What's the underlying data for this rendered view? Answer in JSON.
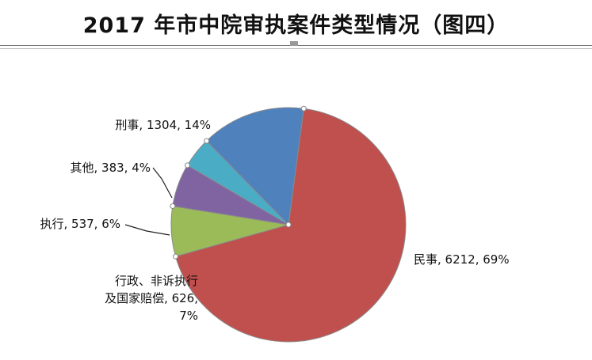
{
  "title": "2017 年市中院审执案件类型情况（图四）",
  "chart_data": {
    "type": "pie",
    "title": "2017 年市中院审执案件类型情况（图四）",
    "slices": [
      {
        "category": "民事",
        "value": 6212,
        "percent": "69%",
        "color": "#c0504d",
        "label_lines": [
          "民事, 6212, 69%"
        ]
      },
      {
        "category": "行政、非诉执行及国家赔偿",
        "value": 626,
        "percent": "7%",
        "color": "#9bbb59",
        "label_lines": [
          "行政、非诉执行",
          "及国家赔偿, 626,",
          "7%"
        ]
      },
      {
        "category": "执行",
        "value": 537,
        "percent": "6%",
        "color": "#8064a2",
        "label_lines": [
          "执行, 537, 6%"
        ]
      },
      {
        "category": "其他",
        "value": 383,
        "percent": "4%",
        "color": "#4bacc6",
        "label_lines": [
          "其他, 383, 4%"
        ]
      },
      {
        "category": "刑事",
        "value": 1304,
        "percent": "14%",
        "color": "#4f81bd",
        "label_lines": [
          "刑事, 1304, 14%"
        ]
      }
    ],
    "legend": "none",
    "start_angle": "top, clockwise"
  }
}
